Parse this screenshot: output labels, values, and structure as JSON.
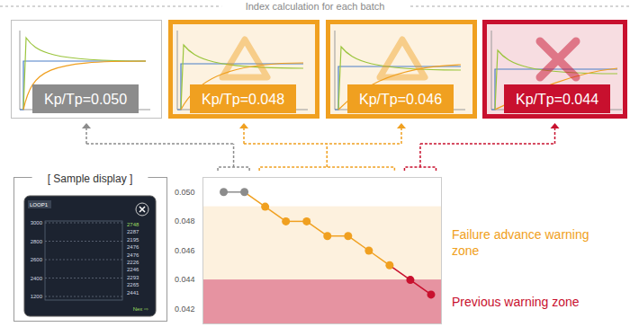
{
  "header": {
    "title": "Index calculation for each batch"
  },
  "panels": [
    {
      "label": "Kp/Tp=0.050",
      "color": "#8c8c8c",
      "marker": "none"
    },
    {
      "label": "Kp/Tp=0.048",
      "color": "#f0a020",
      "marker": "triangle"
    },
    {
      "label": "Kp/Tp=0.046",
      "color": "#f0a020",
      "marker": "triangle"
    },
    {
      "label": "Kp/Tp=0.044",
      "color": "#c8102e",
      "marker": "cross"
    }
  ],
  "sample_display": {
    "title": "[ Sample display ]",
    "screen": {
      "tag": "LOOP1",
      "left_labels": [
        "3000",
        "2800",
        "2600",
        "2400",
        "1200"
      ],
      "right_labels": [
        "2748",
        "2287",
        "2195",
        "2476",
        "2476",
        "2226",
        "2246",
        "2293",
        "2265",
        "2441"
      ],
      "footer": "Nex ⇨"
    }
  },
  "chart_data": {
    "type": "line",
    "x": [
      1,
      2,
      3,
      4,
      5,
      6,
      7,
      8,
      9,
      10,
      11
    ],
    "values": [
      0.05,
      0.05,
      0.049,
      0.048,
      0.048,
      0.047,
      0.047,
      0.046,
      0.045,
      0.044,
      0.043
    ],
    "colors": [
      "#8c8c8c",
      "#8c8c8c",
      "#f0a020",
      "#f0a020",
      "#f0a020",
      "#f0a020",
      "#f0a020",
      "#f0a020",
      "#f0a020",
      "#c8102e",
      "#c8102e"
    ],
    "marker": "circle",
    "xlim": [
      0,
      11.5
    ],
    "ylim": [
      0.041,
      0.051
    ],
    "yticks": [
      {
        "value": 0.05,
        "label": "0.050"
      },
      0.048,
      0.046,
      0.044,
      0.042
    ],
    "tick_labels": "y",
    "zones": [
      {
        "label": "Failure advance warning zone",
        "from": 0.044,
        "to": 0.049,
        "color": "#f0a020"
      },
      {
        "label": "Previous warning zone",
        "from": 0.041,
        "to": 0.044,
        "color": "#c8102e"
      }
    ]
  }
}
